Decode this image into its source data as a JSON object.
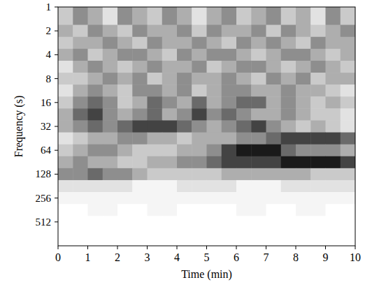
{
  "chart_data": {
    "type": "heatmap",
    "x_label": "Time (min)",
    "y_label": "Frequency (s)",
    "xlim": [
      0,
      10
    ],
    "xticks": [
      0,
      1,
      2,
      3,
      4,
      5,
      6,
      7,
      8,
      9,
      10
    ],
    "ylim": [
      1,
      1024
    ],
    "yticks": [
      1,
      2,
      4,
      8,
      16,
      32,
      64,
      128,
      256,
      512
    ],
    "log": "y",
    "grid": false,
    "color": "#000000",
    "x": [
      0.25,
      0.75,
      1.25,
      1.75,
      2.25,
      2.75,
      3.25,
      3.75,
      4.25,
      4.75,
      5.25,
      5.75,
      6.25,
      6.75,
      7.25,
      7.75,
      8.25,
      8.75,
      9.25,
      9.75
    ],
    "y": [
      1.41,
      2,
      2.83,
      4,
      5.66,
      8,
      11.3,
      16,
      22.6,
      32,
      45.3,
      64,
      90.5,
      128,
      181,
      256,
      362,
      512,
      724
    ],
    "values": [
      [
        4,
        6,
        5,
        3,
        6,
        5,
        4,
        6,
        5,
        3,
        5,
        6,
        4,
        5,
        6,
        4,
        5,
        3,
        6,
        4
      ],
      [
        5,
        4,
        6,
        5,
        4,
        6,
        5,
        5,
        6,
        4,
        6,
        5,
        5,
        6,
        4,
        6,
        5,
        4,
        5,
        6
      ],
      [
        4,
        5,
        5,
        6,
        5,
        4,
        6,
        5,
        5,
        6,
        5,
        4,
        6,
        5,
        6,
        5,
        4,
        6,
        5,
        5
      ],
      [
        5,
        6,
        4,
        5,
        6,
        6,
        5,
        4,
        6,
        5,
        6,
        6,
        5,
        4,
        5,
        6,
        6,
        5,
        4,
        5
      ],
      [
        3,
        5,
        6,
        5,
        4,
        5,
        6,
        5,
        5,
        6,
        4,
        5,
        6,
        6,
        5,
        4,
        5,
        6,
        5,
        4
      ],
      [
        4,
        4,
        5,
        6,
        5,
        6,
        4,
        5,
        6,
        5,
        5,
        6,
        5,
        4,
        6,
        5,
        6,
        4,
        5,
        5
      ],
      [
        3,
        5,
        6,
        5,
        4,
        6,
        6,
        5,
        6,
        4,
        5,
        6,
        6,
        5,
        5,
        6,
        5,
        5,
        4,
        3
      ],
      [
        4,
        6,
        7,
        6,
        4,
        5,
        7,
        6,
        5,
        7,
        5,
        6,
        7,
        7,
        5,
        6,
        5,
        4,
        5,
        4
      ],
      [
        5,
        7,
        8,
        6,
        5,
        6,
        7,
        5,
        6,
        8,
        6,
        7,
        6,
        5,
        5,
        6,
        5,
        4,
        4,
        3
      ],
      [
        5,
        6,
        7,
        6,
        7,
        8,
        8,
        8,
        7,
        6,
        5,
        6,
        7,
        8,
        6,
        5,
        4,
        5,
        4,
        3
      ],
      [
        3,
        4,
        5,
        5,
        6,
        6,
        5,
        5,
        4,
        5,
        5,
        5,
        6,
        6,
        7,
        8,
        8,
        8,
        8,
        7
      ],
      [
        4,
        5,
        6,
        6,
        5,
        4,
        4,
        4,
        5,
        5,
        6,
        8,
        9,
        9,
        9,
        7,
        6,
        6,
        6,
        5
      ],
      [
        5,
        6,
        5,
        5,
        4,
        4,
        5,
        5,
        6,
        6,
        7,
        8,
        8,
        8,
        8,
        9,
        9,
        9,
        9,
        8
      ],
      [
        6,
        6,
        7,
        6,
        6,
        5,
        4,
        4,
        4,
        4,
        4,
        5,
        5,
        5,
        5,
        5,
        5,
        4,
        4,
        4
      ],
      [
        3,
        3,
        3,
        3,
        3,
        2,
        2,
        2,
        3,
        3,
        3,
        3,
        2,
        2,
        2,
        3,
        3,
        3,
        3,
        3
      ],
      [
        2,
        2,
        2,
        2,
        2,
        2,
        2,
        2,
        2,
        2,
        2,
        2,
        2,
        2,
        2,
        2,
        2,
        2,
        2,
        2
      ],
      [
        1,
        1,
        2,
        2,
        1,
        1,
        2,
        2,
        1,
        1,
        1,
        1,
        2,
        2,
        1,
        1,
        2,
        2,
        1,
        1
      ],
      [
        1,
        1,
        1,
        1,
        1,
        1,
        1,
        1,
        1,
        1,
        1,
        1,
        1,
        1,
        1,
        1,
        1,
        1,
        1,
        1
      ],
      [
        1,
        1,
        1,
        1,
        1,
        1,
        1,
        1,
        1,
        1,
        1,
        1,
        1,
        1,
        1,
        1,
        1,
        1,
        1,
        1
      ]
    ]
  }
}
